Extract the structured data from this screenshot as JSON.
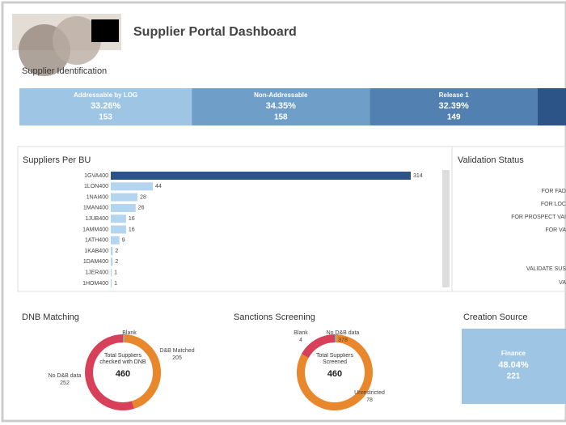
{
  "header": {
    "title": "Supplier Portal Dashboard"
  },
  "chart_data": [
    {
      "type": "stacked-share",
      "title": "Supplier Identification",
      "categories": [
        "Addressable by LOG",
        "Non-Addressable",
        "Release 1"
      ],
      "values": [
        153,
        158,
        149
      ],
      "shares": [
        33.26,
        34.35,
        32.39
      ],
      "share_labels": [
        "33.26%",
        "34.35%",
        "32.39%"
      ],
      "colors": [
        "#9ec5e3",
        "#6f9ec9",
        "#5280b0"
      ]
    },
    {
      "type": "hbar",
      "title": "Suppliers Per BU",
      "categories": [
        "1GVA400",
        "1LON400",
        "1NAI400",
        "1MAN400",
        "1JUB400",
        "1AMM400",
        "1ATH400",
        "1KAB400",
        "1DAM400",
        "1JER400",
        "1HOM400"
      ],
      "values": [
        314,
        44,
        28,
        26,
        16,
        16,
        9,
        2,
        2,
        1,
        1
      ],
      "colors": [
        "#2c5487",
        "#b3d5ef",
        "#b3d5ef",
        "#b3d5ef",
        "#b3d5ef",
        "#b3d5ef",
        "#b3d5ef",
        "#b3d5ef",
        "#b3d5ef",
        "#b3d5ef",
        "#b3d5ef"
      ]
    },
    {
      "type": "list",
      "title": "Validation Status",
      "categories": [
        "FOR FAD",
        "FOR LOC",
        "FOR PROSPECT VAI",
        "FOR VA",
        "VALIDATE SUS",
        "VA"
      ]
    },
    {
      "type": "donut",
      "title": "DNB Matching",
      "center_label": "Total Suppliers checked with DNB",
      "total": 460,
      "categories": [
        "Blank",
        "D&B Matched",
        "No D&B data"
      ],
      "values": [
        3,
        205,
        252
      ],
      "colors": [
        "#8fa5ab",
        "#e8872b",
        "#d8405a"
      ]
    },
    {
      "type": "donut",
      "title": "Sanctions Screening",
      "center_label": "Total Suppliers Screened",
      "total": 460,
      "categories": [
        "Blank",
        "No D&B data",
        "Unrestricted"
      ],
      "values": [
        4,
        378,
        78
      ],
      "colors": [
        "#8fa5ab",
        "#e8872b",
        "#d8405a"
      ]
    },
    {
      "type": "treemap",
      "title": "Creation Source",
      "categories": [
        "Finance"
      ],
      "values": [
        221
      ],
      "shares": [
        48.04
      ],
      "share_labels": [
        "48.04%"
      ],
      "colors": [
        "#9ec5e3"
      ]
    }
  ]
}
